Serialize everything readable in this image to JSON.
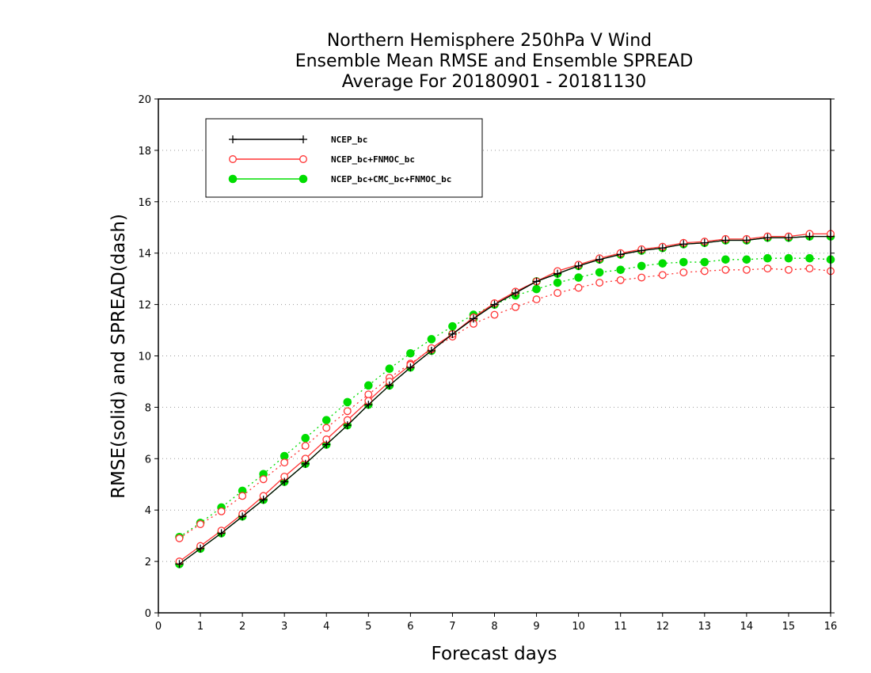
{
  "chart_data": {
    "type": "line",
    "title": [
      "Northern Hemisphere 250hPa V Wind",
      "Ensemble Mean RMSE and Ensemble SPREAD",
      "Average For 20180901 - 20181130"
    ],
    "xlabel": "Forecast days",
    "ylabel": "RMSE(solid) and SPREAD(dash)",
    "xlim": [
      0,
      16
    ],
    "ylim": [
      0,
      20
    ],
    "x_ticks": [
      "0",
      "1",
      "2",
      "3",
      "4",
      "5",
      "6",
      "7",
      "8",
      "9",
      "10",
      "11",
      "12",
      "13",
      "14",
      "15",
      "16"
    ],
    "y_ticks": [
      "0",
      "2",
      "4",
      "6",
      "8",
      "10",
      "12",
      "14",
      "16",
      "18",
      "20"
    ],
    "grid": "horizontal dotted",
    "legend_position": "top-left",
    "x": [
      0.5,
      1,
      1.5,
      2,
      2.5,
      3,
      3.5,
      4,
      4.5,
      5,
      5.5,
      6,
      6.5,
      7,
      7.5,
      8,
      8.5,
      9,
      9.5,
      10,
      10.5,
      11,
      11.5,
      12,
      12.5,
      13,
      13.5,
      14,
      14.5,
      15,
      15.5,
      16
    ],
    "series": [
      {
        "name": "NCEP_bc",
        "color": "#000000",
        "marker": "plus",
        "rmse": [
          1.9,
          2.5,
          3.1,
          3.75,
          4.4,
          5.1,
          5.8,
          6.55,
          7.3,
          8.1,
          8.85,
          9.55,
          10.2,
          10.85,
          11.45,
          12.0,
          12.45,
          12.9,
          13.2,
          13.5,
          13.75,
          13.95,
          14.1,
          14.2,
          14.35,
          14.4,
          14.5,
          14.5,
          14.6,
          14.6,
          14.65,
          14.65
        ],
        "spread": []
      },
      {
        "name": "NCEP_bc+FNMOC_bc",
        "color": "#ff3333",
        "marker": "open-circle",
        "rmse": [
          2.0,
          2.6,
          3.2,
          3.85,
          4.55,
          5.3,
          6.0,
          6.75,
          7.5,
          8.25,
          9.0,
          9.65,
          10.3,
          10.85,
          11.5,
          12.05,
          12.5,
          12.9,
          13.3,
          13.55,
          13.8,
          14.0,
          14.15,
          14.25,
          14.4,
          14.45,
          14.55,
          14.55,
          14.65,
          14.65,
          14.75,
          14.75
        ],
        "spread": [
          2.9,
          3.45,
          3.95,
          4.55,
          5.2,
          5.85,
          6.5,
          7.2,
          7.85,
          8.5,
          9.15,
          9.7,
          10.25,
          10.75,
          11.25,
          11.6,
          11.9,
          12.2,
          12.45,
          12.65,
          12.85,
          12.95,
          13.05,
          13.15,
          13.25,
          13.3,
          13.35,
          13.35,
          13.4,
          13.35,
          13.4,
          13.3
        ]
      },
      {
        "name": "NCEP_bc+CMC_bc+FNMOC_bc",
        "color": "#00dd00",
        "marker": "filled-circle",
        "rmse": [
          1.9,
          2.5,
          3.1,
          3.75,
          4.4,
          5.1,
          5.8,
          6.55,
          7.3,
          8.1,
          8.85,
          9.55,
          10.2,
          10.85,
          11.45,
          12.0,
          12.45,
          12.9,
          13.2,
          13.5,
          13.75,
          13.95,
          14.1,
          14.2,
          14.35,
          14.4,
          14.5,
          14.5,
          14.6,
          14.6,
          14.65,
          14.65
        ],
        "spread": [
          2.95,
          3.5,
          4.1,
          4.75,
          5.4,
          6.1,
          6.8,
          7.5,
          8.2,
          8.85,
          9.5,
          10.1,
          10.65,
          11.15,
          11.6,
          12.0,
          12.35,
          12.6,
          12.85,
          13.05,
          13.25,
          13.35,
          13.5,
          13.6,
          13.65,
          13.65,
          13.75,
          13.75,
          13.8,
          13.8,
          13.8,
          13.75
        ]
      }
    ]
  }
}
